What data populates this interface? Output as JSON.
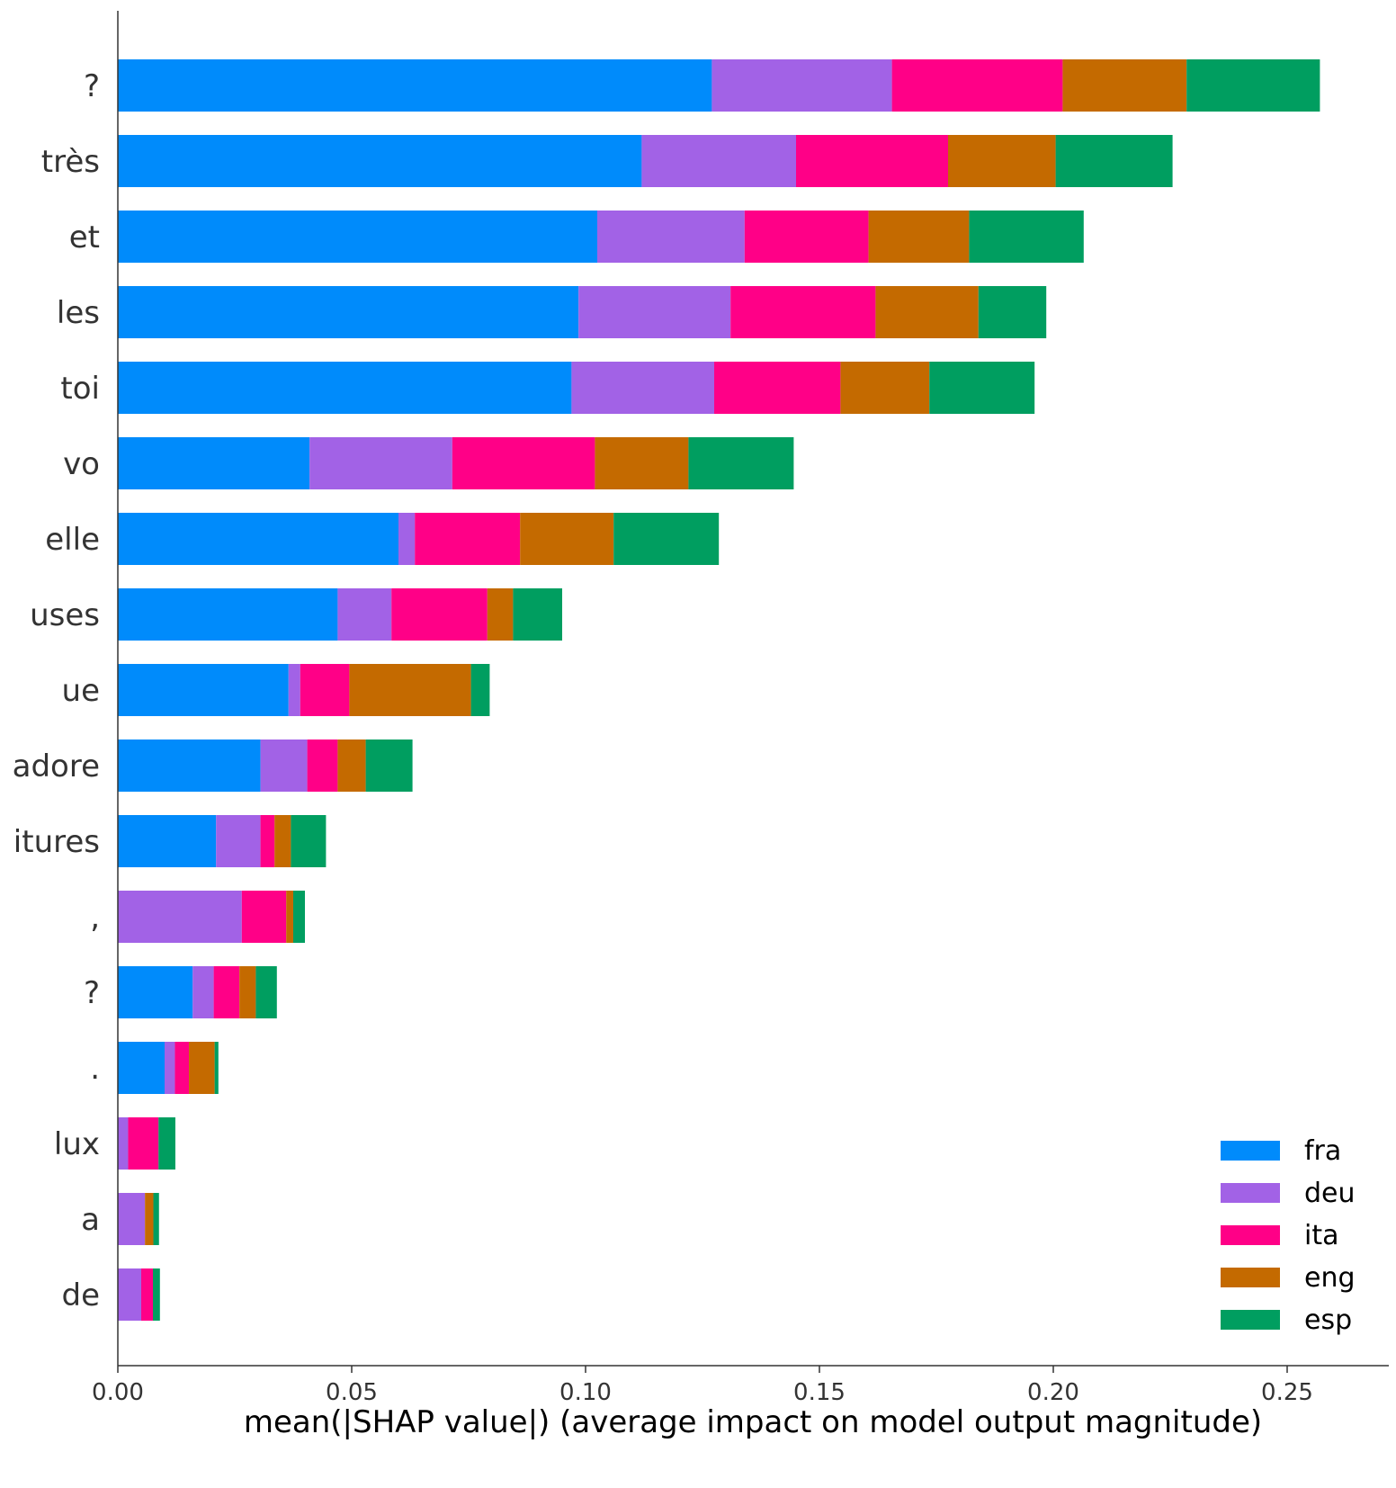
{
  "chart_data": {
    "type": "bar",
    "orientation": "horizontal",
    "stacked": true,
    "title": "",
    "xlabel": "mean(|SHAP value|) (average impact on model output magnitude)",
    "ylabel": "",
    "xlim": [
      0,
      0.27
    ],
    "xticks": [
      0.0,
      0.05,
      0.1,
      0.15,
      0.2,
      0.25
    ],
    "xtick_labels": [
      "0.00",
      "0.05",
      "0.10",
      "0.15",
      "0.20",
      "0.25"
    ],
    "grid": false,
    "legend_position": "lower-right",
    "categories": [
      "?",
      "très",
      "et",
      "les",
      "toi",
      "vo",
      "elle",
      "uses",
      "ue",
      "adore",
      "itures",
      ",",
      "?",
      ".",
      "lux",
      "a",
      "de"
    ],
    "series": [
      {
        "name": "fra",
        "color": "#008bfb",
        "values": [
          0.127,
          0.112,
          0.1025,
          0.0985,
          0.097,
          0.041,
          0.06,
          0.047,
          0.0365,
          0.0305,
          0.021,
          0.0,
          0.016,
          0.01,
          0.0,
          0.0,
          0.0
        ]
      },
      {
        "name": "deu",
        "color": "#a262e6",
        "values": [
          0.0385,
          0.033,
          0.0315,
          0.0325,
          0.0305,
          0.0305,
          0.0035,
          0.0115,
          0.0025,
          0.01,
          0.0095,
          0.0265,
          0.0045,
          0.0022,
          0.0022,
          0.0058,
          0.005
        ]
      },
      {
        "name": "ita",
        "color": "#ff0087",
        "values": [
          0.0365,
          0.0325,
          0.0265,
          0.031,
          0.027,
          0.0305,
          0.0225,
          0.0205,
          0.0105,
          0.0065,
          0.003,
          0.0095,
          0.0055,
          0.003,
          0.0065,
          0.0,
          0.0025
        ]
      },
      {
        "name": "eng",
        "color": "#c46a00",
        "values": [
          0.0265,
          0.023,
          0.0215,
          0.022,
          0.019,
          0.02,
          0.02,
          0.0055,
          0.026,
          0.006,
          0.0035,
          0.0015,
          0.0035,
          0.0055,
          0.0,
          0.0018,
          0.0
        ]
      },
      {
        "name": "esp",
        "color": "#009e60",
        "values": [
          0.0285,
          0.025,
          0.0245,
          0.0145,
          0.0225,
          0.0225,
          0.0225,
          0.0105,
          0.004,
          0.01,
          0.0075,
          0.0025,
          0.0045,
          0.0008,
          0.0036,
          0.0012,
          0.0015
        ]
      }
    ]
  }
}
